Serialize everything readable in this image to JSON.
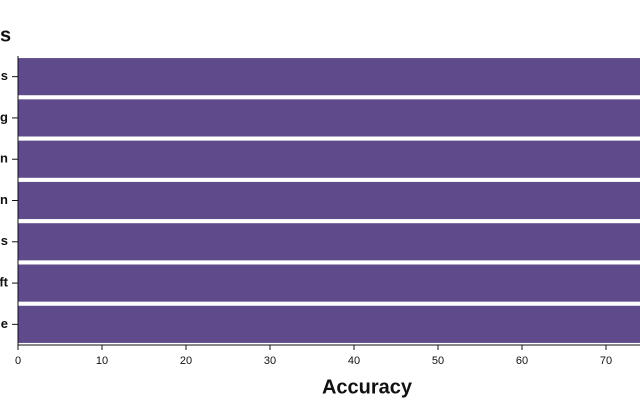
{
  "chart_data": {
    "type": "bar",
    "orientation": "horizontal",
    "y_label": "s",
    "x_label": "Accuracy",
    "categories": [
      "s",
      "g",
      "n",
      "n",
      "s",
      "ft",
      "e"
    ],
    "values": [
      75,
      75,
      75,
      75,
      75,
      75,
      75
    ],
    "color": "#5f4b8b",
    "xlim": [
      0,
      74
    ],
    "xticks": [
      0,
      10,
      20,
      30,
      40,
      50,
      60,
      70
    ],
    "grid": false
  }
}
